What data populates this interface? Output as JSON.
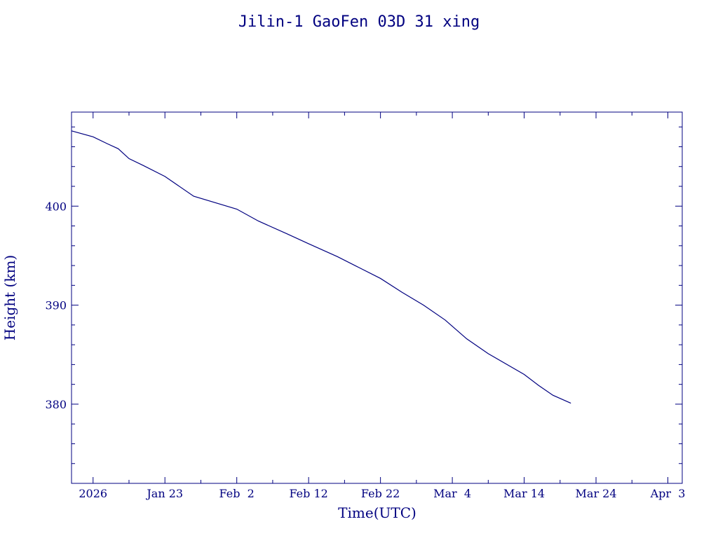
{
  "chart_data": {
    "type": "line",
    "title": "Jilin-1 GaoFen 03D 31 xing",
    "xlabel": "Time(UTC)",
    "ylabel": "Height (km)",
    "colors": {
      "axis": "#000080",
      "line": "#000080",
      "background": "#ffffff"
    },
    "grid": false,
    "legend": "none",
    "xlim": [
      "2026-01-10",
      "2026-04-05"
    ],
    "ylim": [
      372.0,
      409.5
    ],
    "x_ticks": [
      {
        "date": "2026-01-13",
        "label": "2026"
      },
      {
        "date": "2026-01-23",
        "label": "Jan 23"
      },
      {
        "date": "2026-02-02",
        "label": "Feb  2"
      },
      {
        "date": "2026-02-12",
        "label": "Feb 12"
      },
      {
        "date": "2026-02-22",
        "label": "Feb 22"
      },
      {
        "date": "2026-03-04",
        "label": "Mar  4"
      },
      {
        "date": "2026-03-14",
        "label": "Mar 14"
      },
      {
        "date": "2026-03-24",
        "label": "Mar 24"
      },
      {
        "date": "2026-04-03",
        "label": "Apr  3"
      }
    ],
    "x_minor_ticks": [
      "2026-01-18",
      "2026-01-28",
      "2026-02-07",
      "2026-02-17",
      "2026-02-27",
      "2026-03-09",
      "2026-03-19",
      "2026-03-29"
    ],
    "y_ticks": [
      {
        "value": 380,
        "label": "380"
      },
      {
        "value": 390,
        "label": "390"
      },
      {
        "value": 400,
        "label": "400"
      }
    ],
    "y_minor_ticks": [
      374,
      376,
      378,
      382,
      384,
      386,
      388,
      392,
      394,
      396,
      398,
      402,
      404,
      406,
      408
    ],
    "series": [
      {
        "x": [
          "2026-01-10",
          "2026-01-13",
          "2026-01-15",
          "2026-01-16.5",
          "2026-01-18",
          "2026-01-20",
          "2026-01-23",
          "2026-01-27",
          "2026-02-02",
          "2026-02-05",
          "2026-02-09",
          "2026-02-12",
          "2026-02-16",
          "2026-02-19",
          "2026-02-22",
          "2026-02-25",
          "2026-02-28",
          "2026-03-03",
          "2026-03-06",
          "2026-03-09",
          "2026-03-14",
          "2026-03-16",
          "2026-03-18",
          "2026-03-20.5"
        ],
        "y": [
          407.6,
          407.0,
          406.3,
          405.8,
          404.8,
          404.1,
          403.0,
          401.0,
          399.7,
          398.5,
          397.2,
          396.2,
          394.9,
          393.8,
          392.7,
          391.3,
          390.0,
          388.5,
          386.6,
          385.1,
          383.0,
          381.9,
          380.9,
          380.1
        ]
      }
    ]
  }
}
